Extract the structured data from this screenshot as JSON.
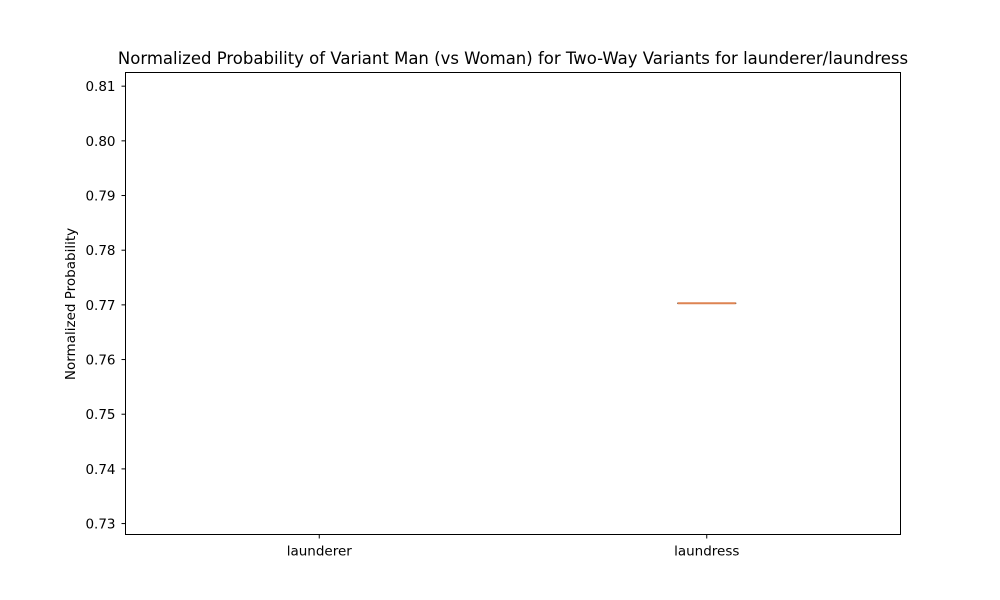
{
  "chart_data": {
    "type": "box",
    "title": "Normalized Probability of Variant Man (vs Woman) for Two-Way Variants for launderer/laundress",
    "xlabel": "",
    "ylabel": "Normalized Probability",
    "categories": [
      "launderer",
      "laundress"
    ],
    "ylim": [
      0.728,
      0.8125
    ],
    "yticks": [
      "0.73",
      "0.74",
      "0.75",
      "0.76",
      "0.77",
      "0.78",
      "0.79",
      "0.80",
      "0.81"
    ],
    "boxes": [
      {
        "category": "launderer",
        "values": []
      },
      {
        "category": "laundress",
        "min": 0.7703,
        "q1": 0.7703,
        "median": 0.7703,
        "q3": 0.7703,
        "max": 0.7703
      }
    ],
    "grid": false,
    "colors": {
      "box": "#000000",
      "median": "#dd8452",
      "axes": "#000000"
    }
  }
}
